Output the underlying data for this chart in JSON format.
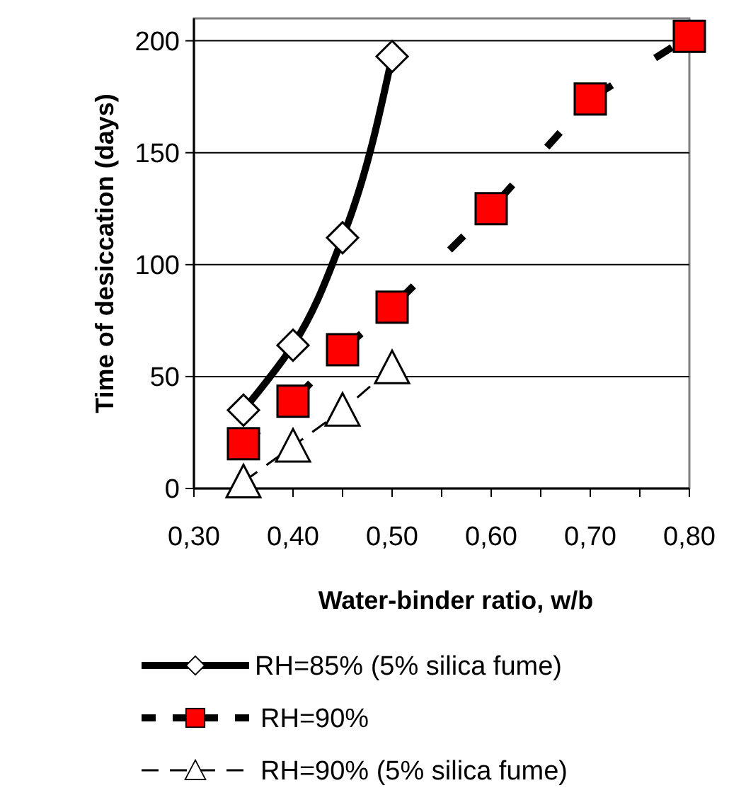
{
  "chart_data": {
    "type": "line",
    "xlabel": "Water-binder ratio, w/b",
    "ylabel": "Time of desiccation (days)",
    "xlim": [
      0.3,
      0.8
    ],
    "xticks": [
      {
        "value": 0.3,
        "label": "0,30"
      },
      {
        "value": 0.35,
        "label": null
      },
      {
        "value": 0.4,
        "label": "0,40"
      },
      {
        "value": 0.45,
        "label": null
      },
      {
        "value": 0.5,
        "label": "0,50"
      },
      {
        "value": 0.55,
        "label": null
      },
      {
        "value": 0.6,
        "label": "0,60"
      },
      {
        "value": 0.65,
        "label": null
      },
      {
        "value": 0.7,
        "label": "0,70"
      },
      {
        "value": 0.75,
        "label": null
      },
      {
        "value": 0.8,
        "label": "0,80"
      }
    ],
    "ylim": [
      0,
      210
    ],
    "yticks": [
      0,
      50,
      100,
      150,
      200
    ],
    "grid": "y",
    "legend": "bottom",
    "series": [
      {
        "name": "RH=85% (5% silica fume)",
        "color": "#ffffff",
        "marker": "diamond",
        "line_style": "solid",
        "x": [
          0.35,
          0.4,
          0.45,
          0.5
        ],
        "values": [
          35,
          64,
          112,
          193
        ]
      },
      {
        "name": "RH=90%",
        "color": "#ff0000",
        "marker": "square",
        "line_style": "dashed",
        "x": [
          0.35,
          0.4,
          0.45,
          0.5,
          0.6,
          0.7,
          0.8
        ],
        "values": [
          20,
          39,
          62,
          81,
          125,
          174,
          202
        ]
      },
      {
        "name": "RH=90% (5% silica fume)",
        "color": "#ffffff",
        "marker": "triangle",
        "line_style": "dashed",
        "x": [
          0.35,
          0.4,
          0.45,
          0.5
        ],
        "values": [
          3,
          19,
          35,
          54
        ]
      }
    ]
  }
}
